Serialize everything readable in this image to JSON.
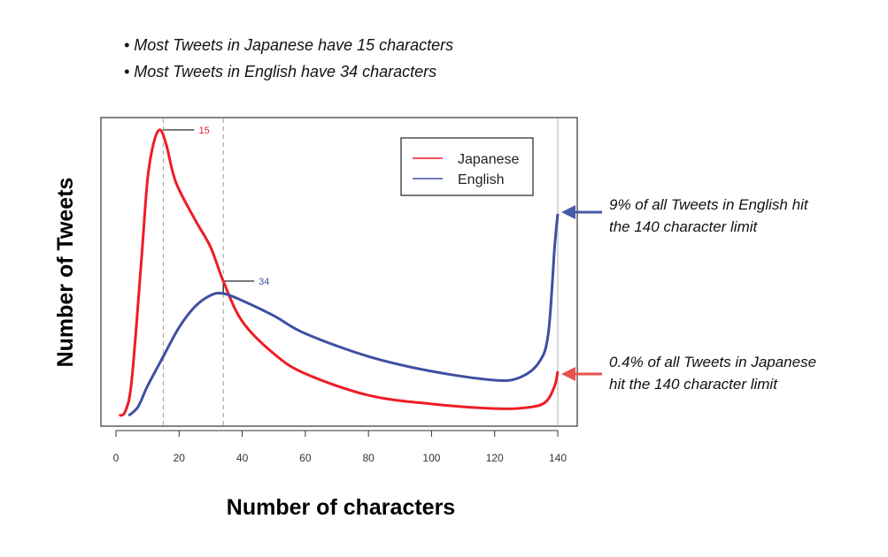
{
  "notes": [
    "• Most Tweets in Japanese have 15 characters",
    "• Most Tweets in English have 34 characters"
  ],
  "annotations": {
    "english": [
      "9% of all Tweets in English hit",
      "the 140 character limit"
    ],
    "japanese": [
      "0.4% of all Tweets in Japanese",
      "hit the 140 character limit"
    ]
  },
  "colors": {
    "japanese": "#ee1c25",
    "english": "#3f4fa3",
    "english_arrow": "#4a5aa8",
    "japanese_arrow": "#e9534f"
  },
  "chart_data": {
    "type": "line",
    "xlabel": "Number of characters",
    "ylabel": "Number of Tweets",
    "xlim": [
      0,
      140
    ],
    "ylim": [
      0,
      100
    ],
    "y_ticks_shown": false,
    "xticks": [
      0,
      20,
      40,
      60,
      80,
      100,
      120,
      140
    ],
    "grid": false,
    "legend": "top-right",
    "markers": [
      {
        "x": 15,
        "label": "15",
        "series": "Japanese"
      },
      {
        "x": 34,
        "label": "34",
        "series": "English"
      }
    ],
    "series": [
      {
        "name": "Japanese",
        "points": [
          [
            1,
            3.4
          ],
          [
            3,
            4.9
          ],
          [
            5,
            15
          ],
          [
            8,
            53
          ],
          [
            10,
            80
          ],
          [
            12,
            92
          ],
          [
            14,
            96
          ],
          [
            16,
            91
          ],
          [
            19,
            79
          ],
          [
            25,
            67
          ],
          [
            30,
            58
          ],
          [
            34,
            47
          ],
          [
            40,
            34
          ],
          [
            50,
            23.5
          ],
          [
            60,
            17
          ],
          [
            80,
            10
          ],
          [
            100,
            7.2
          ],
          [
            120,
            5.7
          ],
          [
            130,
            6
          ],
          [
            136,
            7.7
          ],
          [
            139,
            13
          ],
          [
            140,
            17.8
          ]
        ]
      },
      {
        "name": "English",
        "points": [
          [
            4,
            3.4
          ],
          [
            7,
            6.3
          ],
          [
            10,
            13
          ],
          [
            15,
            22.6
          ],
          [
            20,
            32
          ],
          [
            25,
            38.7
          ],
          [
            30,
            42.4
          ],
          [
            34,
            43
          ],
          [
            40,
            40.7
          ],
          [
            50,
            35.8
          ],
          [
            60,
            30
          ],
          [
            80,
            22.6
          ],
          [
            100,
            17.8
          ],
          [
            120,
            14.9
          ],
          [
            128,
            15.8
          ],
          [
            134,
            20.6
          ],
          [
            137,
            30
          ],
          [
            139,
            58
          ],
          [
            140,
            68.8
          ]
        ]
      }
    ]
  }
}
